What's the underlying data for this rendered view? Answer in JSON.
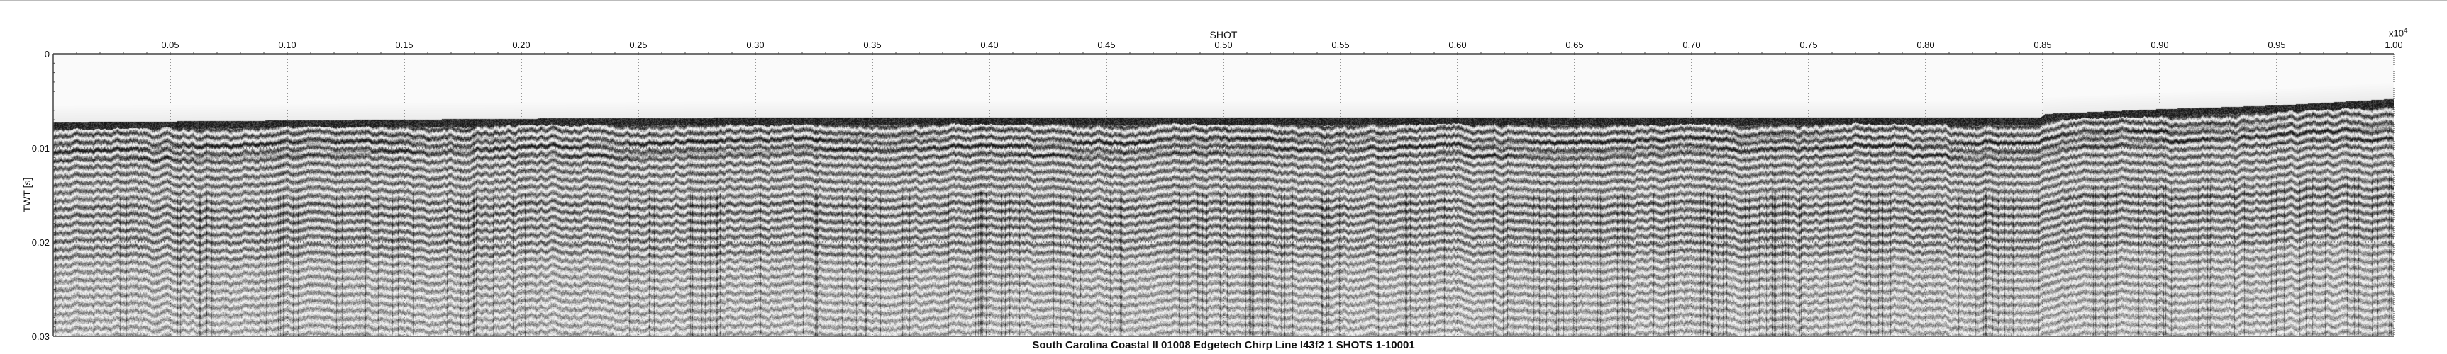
{
  "chart_data": {
    "type": "heatmap",
    "title": "South Carolina Coastal II 01008 Edgetech Chirp Line l43f2  1 SHOTS 1-10001",
    "xlabel": "SHOT",
    "ylabel": "TWT [s]",
    "x_multiplier": "x10",
    "x_multiplier_exp": "4",
    "xlim": [
      0,
      1.0
    ],
    "ylim": [
      0,
      0.03
    ],
    "y_inverted": true,
    "x_ticks": [
      "0.05",
      "0.10",
      "0.15",
      "0.20",
      "0.25",
      "0.30",
      "0.35",
      "0.40",
      "0.45",
      "0.50",
      "0.55",
      "0.60",
      "0.65",
      "0.70",
      "0.75",
      "0.80",
      "0.85",
      "0.90",
      "0.95",
      "1.00"
    ],
    "y_ticks": [
      "0",
      "0.01",
      "0.02",
      "0.03"
    ],
    "grid": "dotted at major ticks",
    "colormap": "grayscale",
    "seafloor_twt_estimate": {
      "x": [
        0,
        0.1,
        0.2,
        0.3,
        0.4,
        0.5,
        0.6,
        0.7,
        0.8,
        0.849,
        0.851,
        0.9,
        0.95,
        1.0
      ],
      "y": [
        0.0077,
        0.0075,
        0.0073,
        0.0072,
        0.0072,
        0.0072,
        0.0072,
        0.0072,
        0.0072,
        0.0072,
        0.0068,
        0.0063,
        0.0059,
        0.0052
      ]
    }
  }
}
